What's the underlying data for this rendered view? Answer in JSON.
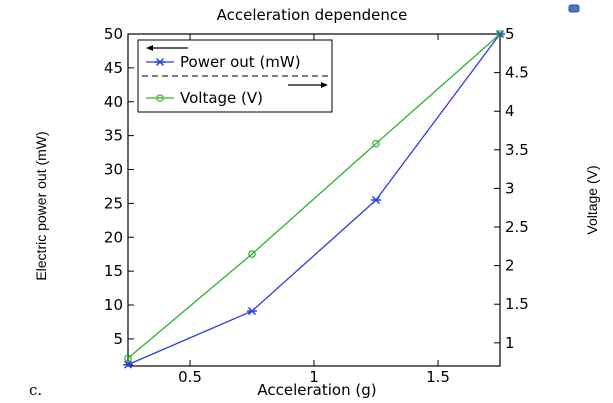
{
  "chart_data": {
    "type": "line",
    "title": "Acceleration dependence",
    "xlabel": "Acceleration (g)",
    "ylabel_left": "Electric power out  (mW)",
    "ylabel_right": "Voltage (V)",
    "xlim": [
      0.25,
      1.75
    ],
    "ylim_left": [
      1,
      50
    ],
    "ylim_right": [
      0.7,
      5
    ],
    "x_ticks": [
      0.5,
      1,
      1.5
    ],
    "x_tick_labels": [
      "0.5",
      "1",
      "1.5"
    ],
    "y_left_ticks": [
      5,
      10,
      15,
      20,
      25,
      30,
      35,
      40,
      45,
      50
    ],
    "y_left_tick_labels": [
      "5",
      "10",
      "15",
      "20",
      "25",
      "30",
      "35",
      "40",
      "45",
      "50"
    ],
    "y_right_ticks": [
      1,
      1.5,
      2,
      2.5,
      3,
      3.5,
      4,
      4.5,
      5
    ],
    "y_right_tick_labels": [
      "1",
      "1.5",
      "2",
      "2.5",
      "3",
      "3.5",
      "4",
      "4.5",
      "5"
    ],
    "grid": false,
    "legend_position": "top-left",
    "series": [
      {
        "name": "Power out (mW)",
        "axis": "left",
        "marker": "asterisk",
        "color": "#2a3fe0",
        "x": [
          0.25,
          0.75,
          1.25,
          1.75
        ],
        "y": [
          1.2,
          9.1,
          25.5,
          50
        ]
      },
      {
        "name": "Voltage (V)",
        "axis": "right",
        "marker": "circle",
        "color": "#2fb02f",
        "x": [
          0.25,
          0.75,
          1.25,
          1.75
        ],
        "y": [
          0.8,
          2.15,
          3.58,
          5.0
        ]
      }
    ]
  },
  "corner_label": "c."
}
